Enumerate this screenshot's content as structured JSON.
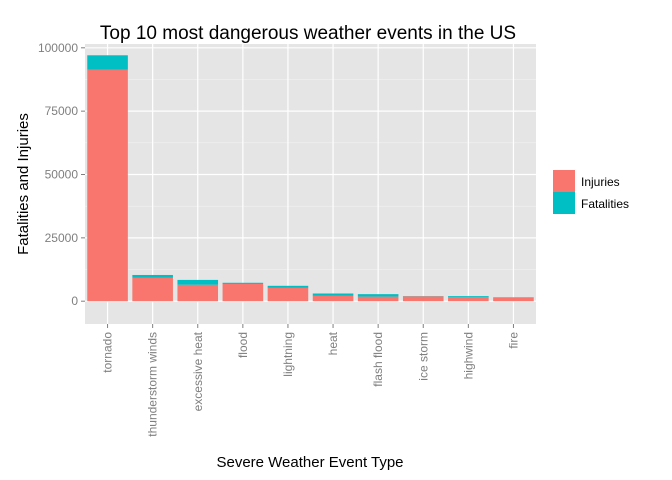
{
  "chart_data": {
    "type": "bar",
    "stacked": true,
    "title": "Top 10 most dangerous weather events in the US",
    "xlabel": "Severe Weather Event Type",
    "ylabel": "Fatalities and Injuries",
    "categories": [
      "tornado",
      "thunderstorm winds",
      "excessive heat",
      "flood",
      "lightning",
      "heat",
      "flash flood",
      "ice storm",
      "highwind",
      "fire"
    ],
    "series": [
      {
        "name": "Injuries",
        "color": "#F8766D",
        "values": [
          91400,
          9350,
          6500,
          6800,
          5250,
          2100,
          1800,
          1950,
          1550,
          1450
        ]
      },
      {
        "name": "Fatalities",
        "color": "#00BFC4",
        "values": [
          5650,
          1000,
          1900,
          470,
          820,
          940,
          980,
          90,
          450,
          90
        ]
      }
    ],
    "ylim": [
      -9000,
      101500
    ],
    "yticks": [
      0,
      25000,
      50000,
      75000,
      100000
    ],
    "grid": true,
    "legend_position": "right",
    "panel_color": "#E5E5E5",
    "grid_color": "#FFFFFF"
  }
}
